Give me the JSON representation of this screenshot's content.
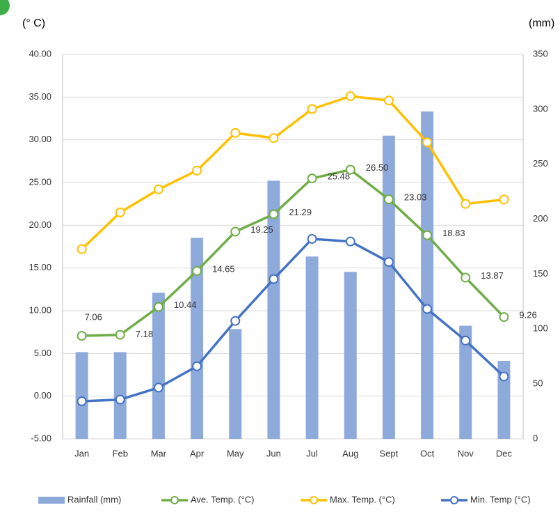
{
  "chart_data": {
    "type": "combo",
    "y_axis_label": "(° C)",
    "y2_axis_label": "(mm)",
    "categories": [
      "Jan",
      "Feb",
      "Mar",
      "Apr",
      "May",
      "Jun",
      "Jul",
      "Aug",
      "Sept",
      "Oct",
      "Nov",
      "Dec"
    ],
    "ylim": [
      -5,
      40
    ],
    "yticks": [
      {
        "value": -5,
        "label": "-5.00"
      },
      {
        "value": 0,
        "label": "0.00"
      },
      {
        "value": 5,
        "label": "5.00"
      },
      {
        "value": 10,
        "label": "10.00"
      },
      {
        "value": 15,
        "label": "15.00"
      },
      {
        "value": 20,
        "label": "20.00"
      },
      {
        "value": 25,
        "label": "25.00"
      },
      {
        "value": 30,
        "label": "30.00"
      },
      {
        "value": 35,
        "label": "35.00"
      },
      {
        "value": 40,
        "label": "40.00"
      }
    ],
    "y2lim": [
      0,
      350
    ],
    "y2ticks": [
      0,
      50,
      100,
      150,
      200,
      250,
      300,
      350
    ],
    "grid": true,
    "legend": "bottom",
    "series": [
      {
        "name": "Rainfall (mm)",
        "type": "bar",
        "axis": "y2",
        "color": "#8eaadb",
        "values": [
          79,
          79,
          133,
          183,
          100,
          235,
          166,
          152,
          276,
          298,
          103,
          71
        ]
      },
      {
        "name": "Ave. Temp. (°C)",
        "type": "line",
        "color": "#70ad47",
        "values": [
          7.06,
          7.18,
          10.44,
          14.65,
          19.25,
          21.29,
          25.48,
          26.5,
          23.03,
          18.83,
          13.87,
          9.26
        ],
        "value_labels": [
          "7.06",
          "7.18",
          "10.44",
          "14.65",
          "19.25",
          "21.29",
          "25.48",
          "26.50",
          "23.03",
          "18.83",
          "13.87",
          "9.26"
        ]
      },
      {
        "name": "Max. Temp. (°C)",
        "type": "line",
        "color": "#ffc000",
        "values": [
          17.2,
          21.5,
          24.2,
          26.4,
          30.8,
          30.2,
          33.6,
          35.1,
          34.6,
          29.7,
          22.5,
          23.0
        ]
      },
      {
        "name": "Min. Temp (°C)",
        "type": "line",
        "color": "#4472c4",
        "values": [
          -0.6,
          -0.4,
          1.0,
          3.5,
          8.8,
          13.7,
          18.4,
          18.1,
          15.7,
          10.2,
          6.5,
          2.3
        ]
      }
    ]
  }
}
